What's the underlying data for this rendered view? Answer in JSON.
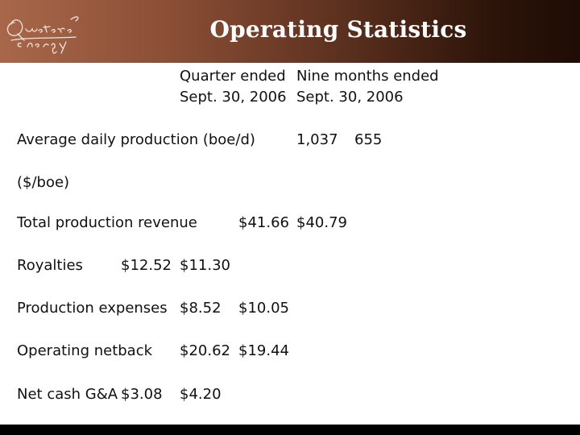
{
  "header": {
    "title": "Operating Statistics",
    "logo_text_line1": "Questerre",
    "logo_text_line2": "energy",
    "gradient_colors": [
      "#a8674a",
      "#1e0c05"
    ]
  },
  "columns": {
    "quarter_line1": "Quarter ended",
    "quarter_line2": "Sept. 30, 2006",
    "nine_line1": "Nine months ended",
    "nine_line2": "Sept. 30, 2006"
  },
  "rows": [
    {
      "label": "Average daily production (boe/d)",
      "quarter": "1,037",
      "nine": "655"
    },
    {
      "label": "($/boe)"
    },
    {
      "label": "Total production revenue",
      "quarter": "$41.66",
      "nine": "$40.79"
    },
    {
      "label": "Royalties",
      "quarter": "$12.52",
      "nine": "$11.30"
    },
    {
      "label": "Production expenses",
      "quarter": "$8.52",
      "nine": "$10.05"
    },
    {
      "label": "Operating netback",
      "quarter": "$20.62",
      "nine": "$19.44"
    },
    {
      "label": "Net cash G&A",
      "quarter": "$3.08",
      "nine": "$4.20"
    }
  ]
}
